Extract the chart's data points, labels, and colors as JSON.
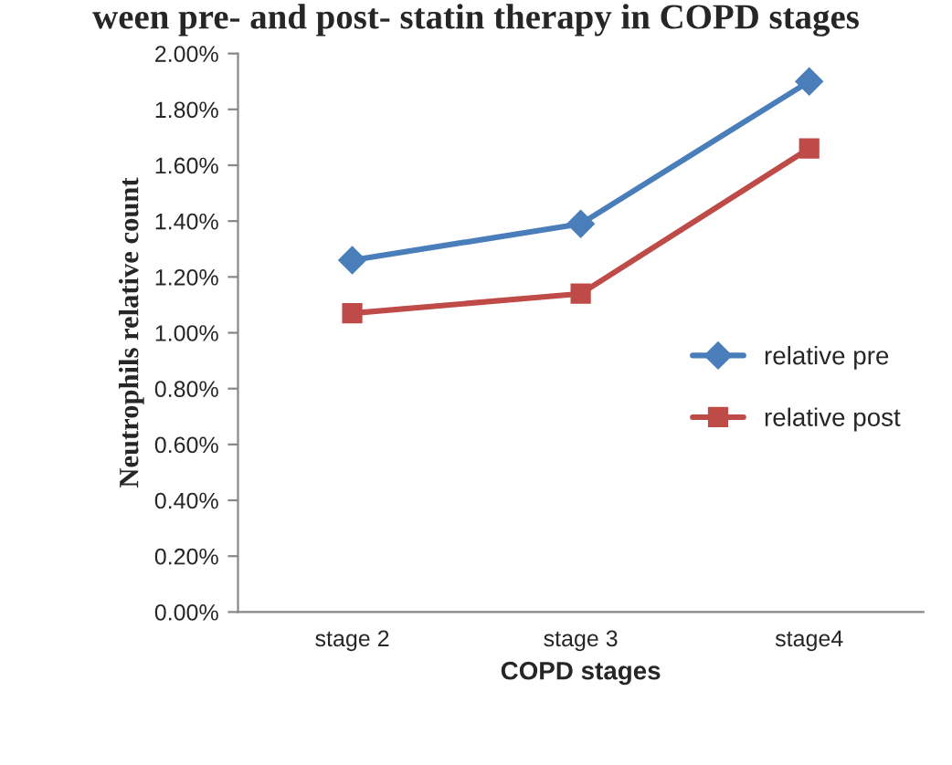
{
  "chart_data": {
    "type": "line",
    "title": "ween pre- and post- statin therapy in COPD stages",
    "xlabel": "COPD stages",
    "ylabel": "Neutrophils relative count",
    "categories": [
      "stage 2",
      "stage 3",
      "stage4"
    ],
    "series": [
      {
        "name": "relative pre",
        "color": "#4a7ebb",
        "values": [
          1.26,
          1.39,
          1.9
        ],
        "marker": "diamond"
      },
      {
        "name": "relative post",
        "color": "#be4b48",
        "values": [
          1.07,
          1.14,
          1.66
        ],
        "marker": "square"
      }
    ],
    "ylim": [
      0,
      2
    ],
    "yticks": [
      {
        "value": 0,
        "label": "0.00%"
      },
      {
        "value": 0.2,
        "label": "0.20%"
      },
      {
        "value": 0.4,
        "label": "0.40%"
      },
      {
        "value": 0.6,
        "label": "0.60%"
      },
      {
        "value": 0.8,
        "label": "0.80%"
      },
      {
        "value": 1.0,
        "label": "1.00%"
      },
      {
        "value": 1.2,
        "label": "1.20%"
      },
      {
        "value": 1.4,
        "label": "1.40%"
      },
      {
        "value": 1.6,
        "label": "1.60%"
      },
      {
        "value": 1.8,
        "label": "1.80%"
      },
      {
        "value": 2.0,
        "label": "2.00%"
      }
    ],
    "grid": false,
    "legend": "right",
    "line_style": "solid"
  }
}
